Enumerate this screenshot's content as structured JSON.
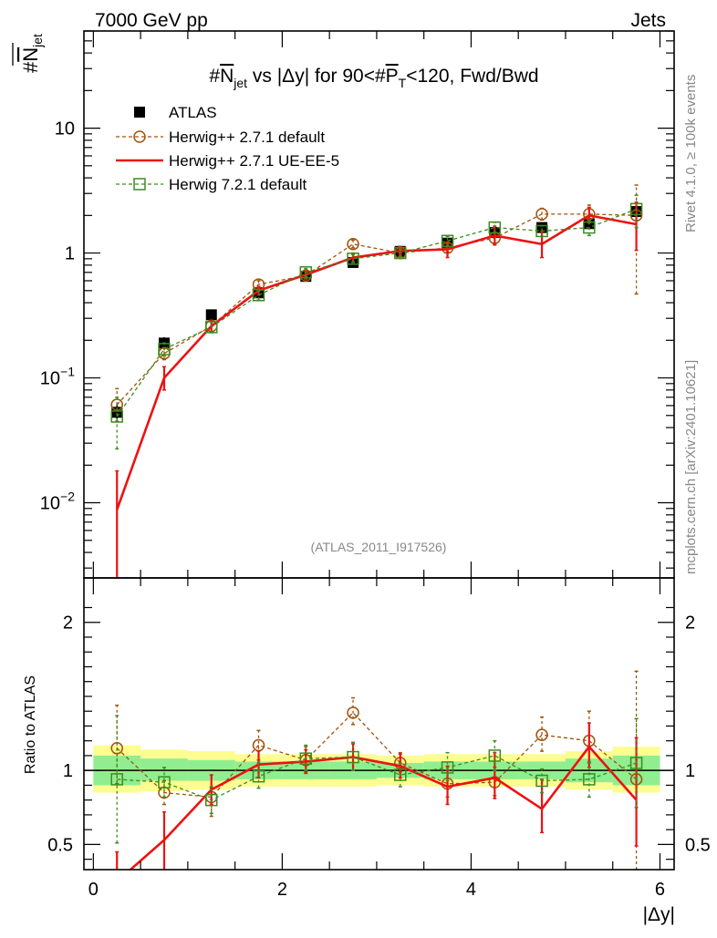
{
  "header": {
    "left": "7000 GeV pp",
    "right": "Jets"
  },
  "side_labels": {
    "rivet": "Rivet 4.1.0, ≥ 100k events",
    "mcplots": "mcplots.cern.ch [arXiv:2401.10621]"
  },
  "watermark": "(ATLAS_2011_I917526)",
  "chart_data": [
    {
      "type": "line",
      "panel": "main",
      "title_parts": {
        "hash": "#",
        "n": "N",
        "n_sub": "jet",
        "mid": " vs |Δy| for 90<#",
        "p": "P",
        "p_sub": "T",
        "tail": "<120, Fwd/Bwd"
      },
      "ylabel_parts": {
        "hash": "#",
        "n": "N",
        "sub": "jet"
      },
      "yscale": "log",
      "ylim": [
        0.0025,
        60
      ],
      "xlim": [
        -0.1,
        6.15
      ],
      "yticks": [
        {
          "value": 0.01,
          "base": "10",
          "exp": "−2"
        },
        {
          "value": 0.1,
          "base": "10",
          "exp": "−1"
        },
        {
          "value": 1,
          "base": "1",
          "exp": ""
        },
        {
          "value": 10,
          "base": "10",
          "exp": ""
        }
      ],
      "x": [
        0.25,
        0.75,
        1.25,
        1.75,
        2.25,
        2.75,
        3.25,
        3.75,
        4.25,
        4.75,
        5.25,
        5.75
      ],
      "series": [
        {
          "name": "ATLAS",
          "color": "#000000",
          "style": "data",
          "values": [
            0.053,
            0.19,
            0.32,
            0.48,
            0.65,
            0.84,
            1.03,
            1.2,
            1.46,
            1.6,
            1.72,
            2.15
          ],
          "err_low": [
            0.045,
            0.168,
            0.29,
            0.45,
            0.61,
            0.79,
            0.97,
            1.13,
            1.37,
            1.49,
            1.58,
            1.92
          ],
          "err_high": [
            0.061,
            0.212,
            0.35,
            0.51,
            0.69,
            0.89,
            1.09,
            1.27,
            1.55,
            1.71,
            1.86,
            2.38
          ]
        },
        {
          "name": "Herwig++ 2.7.1 default",
          "color": "#a0530a",
          "style": "circle-dashed",
          "values": [
            0.061,
            0.157,
            0.26,
            0.56,
            0.66,
            1.18,
            1.0,
            1.1,
            1.32,
            2.05,
            2.05,
            2.0
          ],
          "err_low": [
            0.045,
            0.14,
            0.235,
            0.52,
            0.62,
            1.1,
            0.94,
            1.02,
            1.18,
            1.84,
            1.75,
            0.47
          ],
          "err_high": [
            0.082,
            0.175,
            0.29,
            0.6,
            0.71,
            1.27,
            1.07,
            1.19,
            1.47,
            2.28,
            2.42,
            3.5
          ]
        },
        {
          "name": "Herwig++ 2.7.1 UE-EE-5",
          "color": "#ee1111",
          "style": "solid",
          "values": [
            0.0088,
            0.1,
            0.26,
            0.5,
            0.67,
            0.92,
            1.04,
            1.07,
            1.38,
            1.18,
            2.0,
            1.7
          ],
          "err_low": [
            0.001,
            0.08,
            0.235,
            0.46,
            0.62,
            0.85,
            0.96,
            0.92,
            1.16,
            0.92,
            1.74,
            1.05
          ],
          "err_high": [
            0.018,
            0.123,
            0.29,
            0.54,
            0.72,
            1.0,
            1.13,
            1.23,
            1.64,
            1.5,
            2.32,
            2.55
          ]
        },
        {
          "name": "Herwig 7.2.1 default",
          "color": "#3c8c1e",
          "style": "square-dashed",
          "values": [
            0.049,
            0.17,
            0.255,
            0.46,
            0.7,
            0.9,
            1.0,
            1.25,
            1.6,
            1.5,
            1.6,
            2.25
          ],
          "err_low": [
            0.027,
            0.15,
            0.23,
            0.42,
            0.65,
            0.84,
            0.93,
            1.15,
            1.45,
            1.36,
            1.38,
            1.6
          ],
          "err_high": [
            0.07,
            0.19,
            0.28,
            0.5,
            0.75,
            0.97,
            1.07,
            1.36,
            1.76,
            1.65,
            1.82,
            2.9
          ]
        }
      ]
    },
    {
      "type": "line",
      "panel": "ratio",
      "ylabel": "Ratio to ATLAS",
      "xlabel": "|Δy|",
      "ylim": [
        0.33,
        2.3
      ],
      "xlim": [
        -0.1,
        6.15
      ],
      "yticks": [
        0.5,
        1,
        2
      ],
      "xticks": [
        0,
        2,
        4,
        6
      ],
      "x": [
        0.25,
        0.75,
        1.25,
        1.75,
        2.25,
        2.75,
        3.25,
        3.75,
        4.25,
        4.75,
        5.25,
        5.75
      ],
      "uncertainty_band": {
        "edges": [
          0,
          0.5,
          1.0,
          1.5,
          2.0,
          2.5,
          3.0,
          3.5,
          4.0,
          4.5,
          5.0,
          5.5,
          6.0
        ],
        "stat_low": [
          0.9,
          0.93,
          0.93,
          0.94,
          0.94,
          0.94,
          0.95,
          0.94,
          0.94,
          0.94,
          0.92,
          0.9
        ],
        "stat_high": [
          1.1,
          1.08,
          1.07,
          1.06,
          1.06,
          1.06,
          1.05,
          1.06,
          1.06,
          1.06,
          1.08,
          1.1
        ],
        "total_low": [
          0.85,
          0.86,
          0.87,
          0.89,
          0.89,
          0.89,
          0.9,
          0.89,
          0.89,
          0.89,
          0.87,
          0.85
        ],
        "total_high": [
          1.17,
          1.14,
          1.13,
          1.11,
          1.11,
          1.11,
          1.1,
          1.11,
          1.11,
          1.11,
          1.13,
          1.16
        ],
        "stat_color": "#90ee90",
        "total_color": "#fdfd90"
      },
      "series": [
        {
          "name": "Herwig++ 2.7.1 default",
          "color": "#a0530a",
          "style": "circle-dashed",
          "values": [
            1.15,
            0.85,
            0.82,
            1.17,
            1.07,
            1.39,
            1.05,
            0.91,
            0.92,
            1.24,
            1.2,
            0.94
          ],
          "err_low": [
            0.91,
            0.77,
            0.69,
            1.07,
            0.99,
            1.31,
            0.99,
            0.82,
            0.83,
            1.13,
            1.05,
            0.33
          ],
          "err_high": [
            1.44,
            0.93,
            0.88,
            1.27,
            1.16,
            1.49,
            1.12,
            1.0,
            1.02,
            1.36,
            1.4,
            1.67
          ]
        },
        {
          "name": "Herwig++ 2.7.1 UE-EE-5",
          "color": "#ee1111",
          "style": "solid",
          "values": [
            0.25,
            0.53,
            0.87,
            1.04,
            1.06,
            1.09,
            1.03,
            0.89,
            0.95,
            0.74,
            1.16,
            0.8
          ],
          "err_low": [
            0.1,
            0.3,
            0.77,
            0.95,
            0.98,
            1.0,
            0.95,
            0.77,
            0.81,
            0.58,
            1.02,
            0.49
          ],
          "err_high": [
            0.45,
            0.72,
            0.97,
            1.13,
            1.14,
            1.18,
            1.11,
            1.03,
            1.12,
            0.94,
            1.32,
            1.22
          ]
        },
        {
          "name": "Herwig 7.2.1 default",
          "color": "#3c8c1e",
          "style": "square-dashed",
          "values": [
            0.94,
            0.92,
            0.8,
            0.96,
            1.08,
            1.09,
            0.97,
            1.02,
            1.1,
            0.93,
            0.94,
            1.05
          ],
          "err_low": [
            0.51,
            0.82,
            0.71,
            0.88,
            1.0,
            1.0,
            0.89,
            0.93,
            1.0,
            0.85,
            0.82,
            0.75
          ],
          "err_high": [
            1.37,
            1.02,
            0.89,
            1.05,
            1.17,
            1.19,
            1.05,
            1.12,
            1.2,
            1.01,
            1.06,
            1.35
          ]
        }
      ]
    }
  ]
}
